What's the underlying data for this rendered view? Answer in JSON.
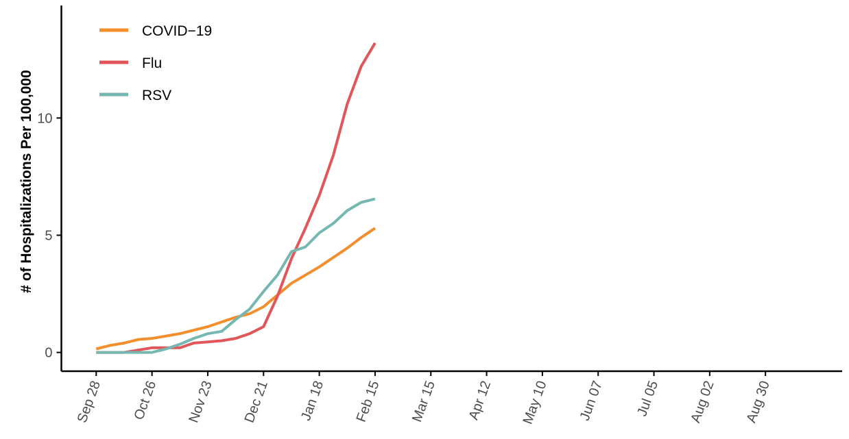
{
  "chart_data": {
    "type": "line",
    "ylabel": "# of Hospitalizations Per 100,000",
    "xlabel": "",
    "x_tick_labels": [
      "Sep 28",
      "Oct 26",
      "Nov 23",
      "Dec 21",
      "Jan 18",
      "Feb 15",
      "Mar 15",
      "Apr 12",
      "May 10",
      "Jun 07",
      "Jul 05",
      "Aug 02",
      "Aug 30"
    ],
    "x_tick_week_index": [
      0,
      4,
      8,
      12,
      16,
      20,
      24,
      28,
      32,
      36,
      40,
      44,
      48
    ],
    "x_range_weeks": [
      -2.5,
      53.5
    ],
    "y_ticks": [
      0,
      5,
      10
    ],
    "ylim": [
      -0.8,
      14.8
    ],
    "grid": false,
    "legend_position": "top-left",
    "series": [
      {
        "name": "COVID−19",
        "color": "#F28E2B",
        "x_week": [
          0,
          1,
          2,
          3,
          4,
          5,
          6,
          7,
          8,
          9,
          10,
          11,
          12,
          13,
          14,
          15,
          16,
          17,
          18,
          19,
          20
        ],
        "values": [
          0.15,
          0.3,
          0.4,
          0.55,
          0.6,
          0.7,
          0.8,
          0.95,
          1.1,
          1.3,
          1.5,
          1.65,
          1.95,
          2.45,
          2.95,
          3.3,
          3.65,
          4.05,
          4.45,
          4.9,
          5.3
        ]
      },
      {
        "name": "Flu",
        "color": "#E15759",
        "x_week": [
          0,
          1,
          2,
          3,
          4,
          5,
          6,
          7,
          8,
          9,
          10,
          11,
          12,
          13,
          14,
          15,
          16,
          17,
          18,
          19,
          20
        ],
        "values": [
          0.0,
          0.0,
          0.0,
          0.1,
          0.2,
          0.2,
          0.2,
          0.4,
          0.45,
          0.5,
          0.6,
          0.8,
          1.1,
          2.4,
          4.0,
          5.3,
          6.7,
          8.4,
          10.6,
          12.2,
          13.2
        ]
      },
      {
        "name": "RSV",
        "color": "#76B7B2",
        "x_week": [
          0,
          1,
          2,
          3,
          4,
          5,
          6,
          7,
          8,
          9,
          10,
          11,
          12,
          13,
          14,
          15,
          16,
          17,
          18,
          19,
          20
        ],
        "values": [
          0.0,
          0.0,
          0.0,
          0.0,
          0.0,
          0.15,
          0.35,
          0.6,
          0.8,
          0.9,
          1.4,
          1.85,
          2.6,
          3.3,
          4.3,
          4.5,
          5.1,
          5.5,
          6.05,
          6.4,
          6.55
        ]
      }
    ]
  }
}
